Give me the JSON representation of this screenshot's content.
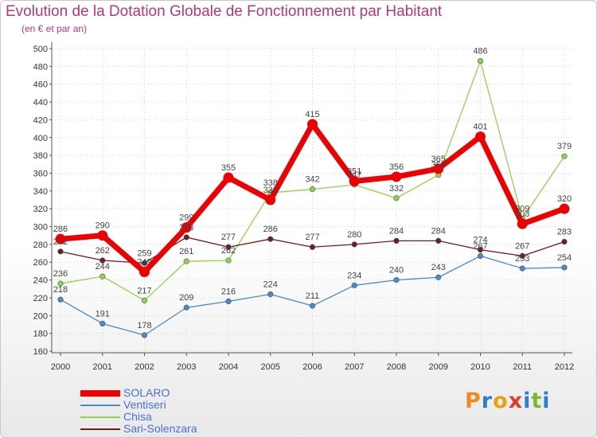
{
  "chart_data": {
    "type": "line",
    "title": "Evolution de la Dotation Globale de Fonctionnement par Habitant",
    "subtitle": "(en € et par an)",
    "xlabel": "",
    "ylabel": "",
    "ylim": [
      160,
      500
    ],
    "yticks": [
      160,
      180,
      200,
      220,
      240,
      260,
      280,
      300,
      320,
      340,
      360,
      380,
      400,
      420,
      440,
      460,
      480,
      500
    ],
    "categories": [
      "2000",
      "2001",
      "2002",
      "2003",
      "2004",
      "2005",
      "2006",
      "2007",
      "2008",
      "2009",
      "2010",
      "2011",
      "2012"
    ],
    "grid": true,
    "legend_position": "bottom-left",
    "series": [
      {
        "name": "Ventiseri",
        "color": "#4a8ac8",
        "values": [
          218,
          191,
          178,
          209,
          216,
          224,
          211,
          234,
          240,
          243,
          267,
          253,
          254
        ]
      },
      {
        "name": "Chisa",
        "color": "#8ed44a",
        "values": [
          236,
          244,
          217,
          261,
          262,
          338,
          342,
          347,
          332,
          358,
          486,
          309,
          379
        ]
      },
      {
        "name": "Sari-Solenzara",
        "color": "#6b1e24",
        "values": [
          272,
          262,
          259,
          288,
          277,
          286,
          277,
          280,
          284,
          284,
          274,
          267,
          283
        ]
      },
      {
        "name": "SOLARO",
        "color": "#ee0000",
        "values": [
          286,
          290,
          249,
          299,
          355,
          330,
          415,
          351,
          356,
          365,
          401,
          303,
          320
        ]
      }
    ],
    "legend_order": [
      "SOLARO",
      "Ventiseri",
      "Chisa",
      "Sari-Solenzara"
    ]
  },
  "logo": {
    "letters": [
      "P",
      "r",
      "o",
      "x",
      "i",
      "t",
      "i"
    ],
    "colors": [
      "#f08a1e",
      "#2c7fd0",
      "#e6a012",
      "#e23b2b",
      "#2c7fd0",
      "#78b82a",
      "#2c7fd0"
    ]
  }
}
